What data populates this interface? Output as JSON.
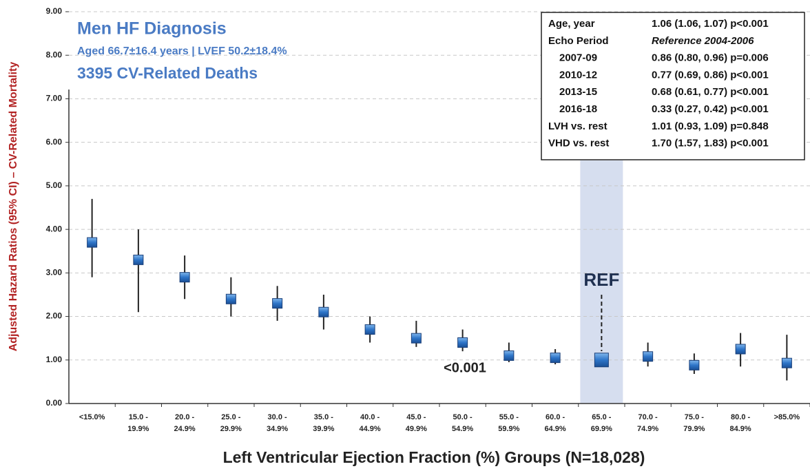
{
  "chart_data": {
    "type": "errorbar",
    "title": "Men HF Diagnosis",
    "subtitle": "Aged 66.7±16.4 years | LVEF 50.2±18.4%",
    "subtitle2": "3395 CV-Related Deaths",
    "y_label": "Adjusted Hazard Ratios (95% CI) – CV-Related Mortality",
    "x_label": "Left Ventricular Ejection Fraction (%) Groups (N=18,028)",
    "categories": [
      [
        "<15.0%"
      ],
      [
        "15.0 -",
        "19.9%"
      ],
      [
        "20.0 -",
        "24.9%"
      ],
      [
        "25.0 -",
        "29.9%"
      ],
      [
        "30.0 -",
        "34.9%"
      ],
      [
        "35.0 -",
        "39.9%"
      ],
      [
        "40.0 -",
        "44.9%"
      ],
      [
        "45.0 -",
        "49.9%"
      ],
      [
        "50.0 -",
        "54.9%"
      ],
      [
        "55.0 -",
        "59.9%"
      ],
      [
        "60.0 -",
        "64.9%"
      ],
      [
        "65.0 -",
        "69.9%"
      ],
      [
        "70.0 -",
        "74.9%"
      ],
      [
        "75.0 -",
        "79.9%"
      ],
      [
        "80.0 -",
        "84.9%"
      ],
      [
        ">85.0%"
      ]
    ],
    "values": [
      3.7,
      3.3,
      2.9,
      2.4,
      2.3,
      2.1,
      1.7,
      1.5,
      1.4,
      1.1,
      1.05,
      1.0,
      1.08,
      0.88,
      1.25,
      0.93
    ],
    "ci_low": [
      2.9,
      2.1,
      2.4,
      2.0,
      1.9,
      1.7,
      1.4,
      1.3,
      1.2,
      0.95,
      0.9,
      null,
      0.85,
      0.68,
      0.85,
      0.53
    ],
    "ci_high": [
      4.7,
      4.0,
      3.4,
      2.9,
      2.7,
      2.5,
      2.0,
      1.9,
      1.7,
      1.4,
      1.25,
      null,
      1.4,
      1.15,
      1.62,
      1.58
    ],
    "color": "#2e75c8",
    "reference_index": 11,
    "reference_label": "REF",
    "p_label": "<0.001",
    "ylim": [
      0,
      9
    ],
    "yticks": [
      {
        "value": 0,
        "label": "0.00"
      },
      {
        "value": 1,
        "label": "1.00"
      },
      {
        "value": 2,
        "label": "2.00"
      },
      {
        "value": 3,
        "label": "3.00"
      },
      {
        "value": 4,
        "label": "4.00"
      },
      {
        "value": 5,
        "label": "5.00"
      },
      {
        "value": 6,
        "label": "6.00"
      },
      {
        "value": 7,
        "label": "7.00"
      },
      {
        "value": 8,
        "label": "8.00"
      },
      {
        "value": 9,
        "label": "9.00"
      }
    ],
    "grid": true,
    "table": [
      [
        "Age, year",
        "1.06 (1.06, 1.07) p<0.001"
      ],
      [
        "Echo Period",
        "Reference 2004-2006"
      ],
      [
        "2007-09",
        "0.86 (0.80, 0.96) p=0.006"
      ],
      [
        "2010-12",
        "0.77 (0.69, 0.86) p<0.001"
      ],
      [
        "2013-15",
        "0.68 (0.61, 0.77) p<0.001"
      ],
      [
        "2016-18",
        "0.33 (0.27, 0.42) p<0.001"
      ],
      [
        "LVH vs. rest",
        "1.01 (0.93, 1.09) p=0.848"
      ],
      [
        "VHD vs. rest",
        "1.70 (1.57, 1.83) p<0.001"
      ]
    ]
  }
}
